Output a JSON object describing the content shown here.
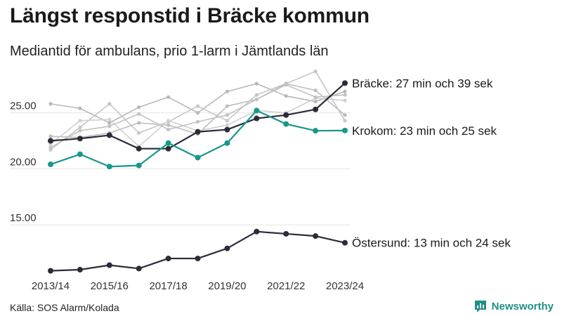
{
  "title": "Längst responstid i Bräcke kommun",
  "subtitle": "Mediantid för ambulans, prio 1-larm i Jämtlands län",
  "source": "Källa: SOS Alarm/Kolada",
  "brand": "Newsworthy",
  "colors": {
    "highlight_dark": "#2b2b3a",
    "highlight_teal": "#17988a",
    "background_line": "#c4c4c4",
    "grid": "#e6e6e6",
    "brand": "#1f8f86"
  },
  "chart_data": {
    "type": "line",
    "x": [
      "2013/14",
      "2014/15",
      "2015/16",
      "2016/17",
      "2017/18",
      "2018/19",
      "2019/20",
      "2020/21",
      "2021/22",
      "2022/23",
      "2023/24"
    ],
    "x_tick_labels": [
      "2013/14",
      "2015/16",
      "2017/18",
      "2019/20",
      "2021/22",
      "2023/24"
    ],
    "y_ticks": [
      15.0,
      20.0,
      25.0
    ],
    "y_tick_labels": [
      "15.00",
      "20.00",
      "25.00"
    ],
    "ylim": [
      10.5,
      28.8
    ],
    "grid": true,
    "series": [
      {
        "label": "Bräcke: 27 min och 39 sek",
        "role": "highlight",
        "color": "#2b2b3a",
        "values": [
          22.5,
          22.7,
          23.0,
          21.8,
          21.8,
          23.3,
          23.5,
          24.5,
          24.8,
          25.3,
          27.65
        ]
      },
      {
        "label": "Krokom: 23 min och 25 sek",
        "role": "highlight",
        "color": "#17988a",
        "values": [
          20.4,
          21.3,
          20.2,
          20.3,
          22.3,
          21.0,
          22.3,
          25.2,
          24.0,
          23.4,
          23.42
        ]
      },
      {
        "label": "Östersund: 13 min och 24 sek",
        "role": "highlight",
        "color": "#2b2b3a",
        "values": [
          10.9,
          11.0,
          11.4,
          11.1,
          12.0,
          12.0,
          12.9,
          14.4,
          14.2,
          14.0,
          13.4
        ]
      },
      {
        "role": "background",
        "color": "#b8b8b8",
        "values": [
          25.8,
          25.4,
          24.1,
          25.5,
          26.4,
          25.0,
          26.9,
          27.6,
          26.5,
          26.0,
          26.9
        ]
      },
      {
        "role": "background",
        "color": "#c6c6c6",
        "values": [
          21.7,
          23.7,
          25.8,
          23.2,
          24.2,
          25.6,
          24.3,
          26.6,
          27.6,
          28.7,
          24.3
        ]
      },
      {
        "role": "background",
        "color": "#bdbdbd",
        "values": [
          22.9,
          22.8,
          23.2,
          24.1,
          23.9,
          23.1,
          25.6,
          26.2,
          27.6,
          27.0,
          24.8
        ]
      },
      {
        "role": "background",
        "color": "#d0d0d0",
        "values": [
          22.2,
          24.3,
          24.4,
          22.0,
          24.3,
          23.4,
          23.9,
          25.2,
          25.0,
          26.3,
          26.1
        ]
      },
      {
        "role": "background",
        "color": "#c2c2c2",
        "values": [
          21.9,
          23.4,
          23.8,
          24.9,
          23.5,
          24.2,
          24.8,
          26.2,
          27.5,
          26.4,
          26.6
        ]
      }
    ]
  }
}
